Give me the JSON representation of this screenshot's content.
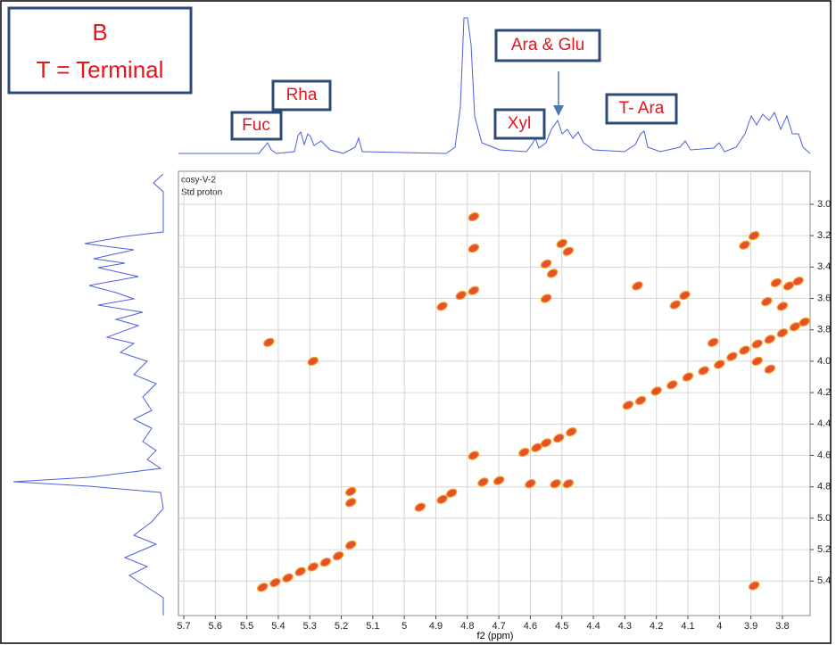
{
  "chart_data": {
    "type": "scatter",
    "annotations": [
      "B",
      "T = Terminal",
      "Fuc",
      "Rha",
      "Xyl",
      "Ara & Glu",
      "T- Ara",
      "cosy-V-2",
      "Std proton"
    ],
    "x_label": "f2 (ppm)",
    "color": "#e0320a",
    "xlim": [
      5.717,
      3.712
    ],
    "ylim": [
      2.79,
      5.62
    ],
    "xticks": [
      5.7,
      5.6,
      5.5,
      5.4,
      5.3,
      5.2,
      5.1,
      5.0,
      4.9,
      4.8,
      4.7,
      4.6,
      4.5,
      4.4,
      4.3,
      4.2,
      4.1,
      4.0,
      3.9,
      3.8
    ],
    "yticks": [
      {
        "value": 3,
        "label": "3.0"
      },
      3.2,
      3.4,
      3.6,
      3.8,
      {
        "value": 4,
        "label": "4.0"
      },
      4.2,
      4.4,
      4.6,
      4.8,
      {
        "value": 5,
        "label": "5.0"
      },
      5.2,
      5.4
    ],
    "grid": true,
    "x": [
      5.45,
      5.41,
      5.37,
      5.33,
      5.29,
      5.25,
      5.21,
      5.17,
      4.95,
      4.88,
      4.85,
      4.75,
      4.7,
      4.62,
      4.58,
      4.55,
      4.51,
      4.47,
      4.29,
      4.25,
      4.2,
      4.15,
      4.1,
      4.05,
      4.0,
      3.96,
      3.92,
      3.88,
      3.84,
      3.8,
      3.76,
      3.73,
      4.78,
      4.78,
      4.78,
      4.82,
      4.88,
      4.78,
      4.55,
      4.5,
      4.48,
      4.53,
      4.55,
      4.26,
      4.11,
      4.14,
      4.02,
      3.89,
      3.92,
      3.82,
      3.78,
      3.75,
      3.8,
      3.85,
      3.84,
      3.88,
      3.89,
      5.43,
      5.29,
      5.17,
      5.17,
      4.6,
      4.52,
      4.48
    ],
    "values": [
      5.44,
      5.41,
      5.38,
      5.34,
      5.31,
      5.28,
      5.24,
      5.17,
      4.93,
      4.88,
      4.84,
      4.77,
      4.76,
      4.58,
      4.55,
      4.52,
      4.49,
      4.45,
      4.28,
      4.25,
      4.19,
      4.15,
      4.1,
      4.06,
      4.02,
      3.97,
      3.93,
      3.89,
      3.86,
      3.82,
      3.78,
      3.75,
      3.08,
      3.55,
      3.28,
      3.58,
      3.65,
      4.6,
      3.38,
      3.25,
      3.3,
      3.44,
      3.6,
      3.52,
      3.58,
      3.64,
      3.88,
      3.2,
      3.26,
      3.5,
      3.52,
      3.49,
      3.65,
      3.62,
      4.05,
      4.0,
      5.43,
      3.88,
      4.0,
      4.83,
      4.9,
      4.78,
      4.78,
      4.78
    ]
  }
}
